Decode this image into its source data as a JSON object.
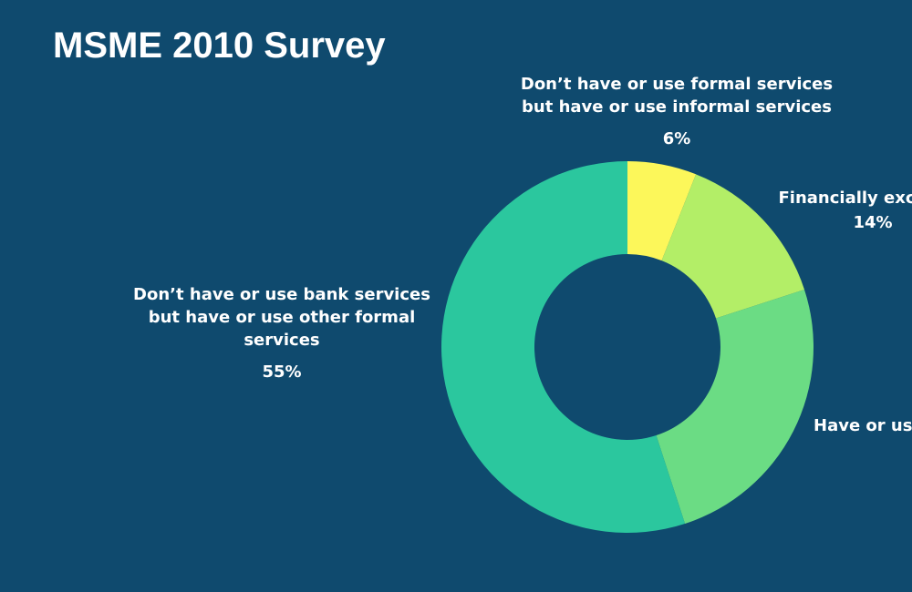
{
  "title": "MSME 2010 Survey",
  "chart_data": {
    "type": "pie",
    "title": "MSME 2010 Survey",
    "donut": true,
    "slices": [
      {
        "label": [
          "Don’t have or use formal services",
          "but have or use informal services"
        ],
        "value": 6,
        "pct": "6%",
        "color": "#fcf75a"
      },
      {
        "label": [
          "Financially excluded"
        ],
        "value": 14,
        "pct": "14%",
        "color": "#b3ee67"
      },
      {
        "label": [
          "Have or use bank services"
        ],
        "value": 25,
        "pct": "",
        "color": "#6bdc84"
      },
      {
        "label": [
          "Don’t have or use bank services",
          "but have or use other formal",
          "services"
        ],
        "value": 55,
        "pct": "55%",
        "color": "#2bc79e"
      }
    ]
  }
}
